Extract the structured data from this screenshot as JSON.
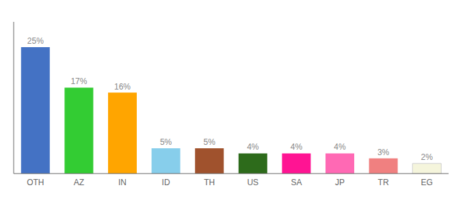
{
  "chart_data": {
    "type": "bar",
    "categories": [
      "OTH",
      "AZ",
      "IN",
      "ID",
      "TH",
      "US",
      "SA",
      "JP",
      "TR",
      "EG"
    ],
    "values": [
      25,
      17,
      16,
      5,
      5,
      4,
      4,
      4,
      3,
      2
    ],
    "value_labels": [
      "25%",
      "17%",
      "16%",
      "5%",
      "5%",
      "4%",
      "4%",
      "4%",
      "3%",
      "2%"
    ],
    "colors": [
      "#4472C4",
      "#33CC33",
      "#FFA500",
      "#87CEEB",
      "#A0522D",
      "#2D6B1B",
      "#FF1493",
      "#FF69B4",
      "#F08080",
      "#F5F5DC"
    ],
    "ylim": [
      0,
      30
    ],
    "data_labels": true,
    "tick_labels": "x",
    "grid": false
  }
}
